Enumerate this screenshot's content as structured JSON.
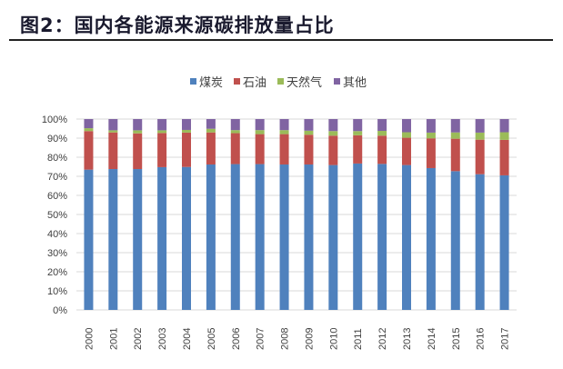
{
  "header": {
    "title": "图2：国内各能源来源碳排放量占比"
  },
  "chart_data": {
    "type": "bar",
    "stacked": true,
    "percent_stacked": true,
    "categories": [
      "2000",
      "2001",
      "2002",
      "2003",
      "2004",
      "2005",
      "2006",
      "2007",
      "2008",
      "2009",
      "2010",
      "2011",
      "2012",
      "2013",
      "2014",
      "2015",
      "2016",
      "2017"
    ],
    "series": [
      {
        "name": "煤炭",
        "color": "#4f81bd",
        "values": [
          73.5,
          73.8,
          73.8,
          74.8,
          74.9,
          76.2,
          76.4,
          76.4,
          76.2,
          76.2,
          75.9,
          76.7,
          76.5,
          75.9,
          74.3,
          72.7,
          71.1,
          70.5
        ]
      },
      {
        "name": "石油",
        "color": "#c0504d",
        "values": [
          20.2,
          19.2,
          18.7,
          17.9,
          18.0,
          16.8,
          16.2,
          15.7,
          15.9,
          15.6,
          15.4,
          14.8,
          14.8,
          14.3,
          15.6,
          17.0,
          18.1,
          18.6
        ]
      },
      {
        "name": "天然气",
        "color": "#9bbb59",
        "values": [
          1.5,
          1.1,
          1.6,
          1.4,
          1.4,
          1.9,
          1.6,
          2.1,
          2.1,
          2.1,
          2.4,
          2.2,
          2.5,
          2.9,
          3.0,
          3.3,
          3.7,
          4.0
        ]
      },
      {
        "name": "其他",
        "color": "#8064a2",
        "values": [
          4.8,
          5.9,
          5.9,
          5.9,
          5.7,
          5.1,
          5.8,
          5.8,
          5.8,
          6.1,
          6.3,
          6.3,
          6.2,
          6.9,
          7.1,
          7.0,
          7.1,
          6.9
        ]
      }
    ],
    "yticks": [
      "0%",
      "10%",
      "20%",
      "30%",
      "40%",
      "50%",
      "60%",
      "70%",
      "80%",
      "90%",
      "100%"
    ],
    "ylim": [
      0,
      100
    ],
    "grid": true,
    "legend": "top-center",
    "xlabel": "",
    "ylabel": ""
  }
}
